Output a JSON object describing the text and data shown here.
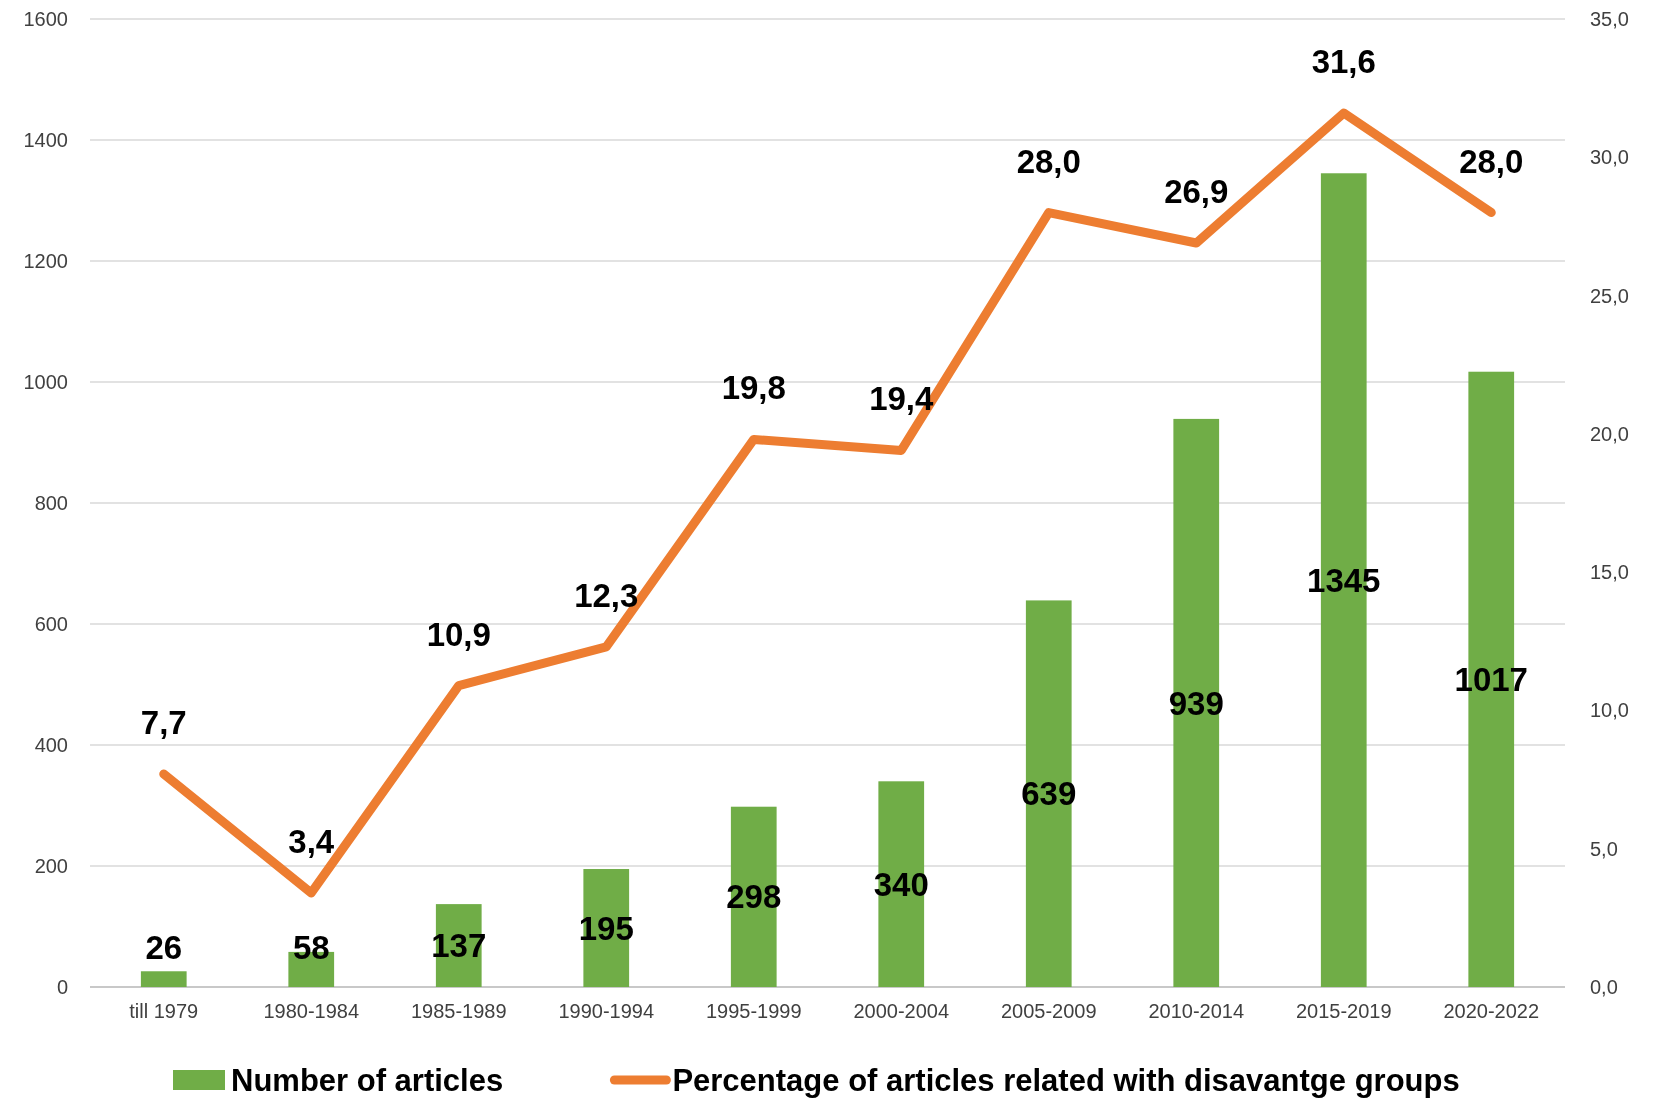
{
  "chart_data": {
    "type": "bar",
    "categories": [
      "till 1979",
      "1980-1984",
      "1985-1989",
      "1990-1994",
      "1995-1999",
      "2000-2004",
      "2005-2009",
      "2010-2014",
      "2015-2019",
      "2020-2022"
    ],
    "series": [
      {
        "name": "Number of articles",
        "color": "#70ad47",
        "values": [
          26,
          58,
          137,
          195,
          298,
          340,
          639,
          939,
          1345,
          1017
        ],
        "value_labels": [
          "26",
          "58",
          "137",
          "195",
          "298",
          "340",
          "639",
          "939",
          "1345",
          "1017"
        ]
      },
      {
        "name": "Percentage of articles related with disavantge groups",
        "type": "line",
        "axis": "y2",
        "color": "#ed7d31",
        "values": [
          7.7,
          3.4,
          10.9,
          12.3,
          19.8,
          19.4,
          28.0,
          26.9,
          31.6,
          28.0
        ],
        "value_labels": [
          "7,7",
          "3,4",
          "10,9",
          "12,3",
          "19,8",
          "19,4",
          "28,0",
          "26,9",
          "31,6",
          "28,0"
        ]
      }
    ],
    "ylim": [
      0,
      1600
    ],
    "yticks": [
      0,
      200,
      400,
      600,
      800,
      1000,
      1200,
      1400,
      1600
    ],
    "y2lim": [
      0,
      35
    ],
    "y2ticks": [
      {
        "value": 0,
        "label": "0,0"
      },
      {
        "value": 5,
        "label": "5,0"
      },
      {
        "value": 10,
        "label": "10,0"
      },
      {
        "value": 15,
        "label": "15,0"
      },
      {
        "value": 20,
        "label": "20,0"
      },
      {
        "value": 25,
        "label": "25,0"
      },
      {
        "value": 30,
        "label": "30,0"
      },
      {
        "value": 35,
        "label": "35,0"
      }
    ],
    "grid": "y",
    "legend": "bottom",
    "marker": "none",
    "line_style": "solid"
  }
}
